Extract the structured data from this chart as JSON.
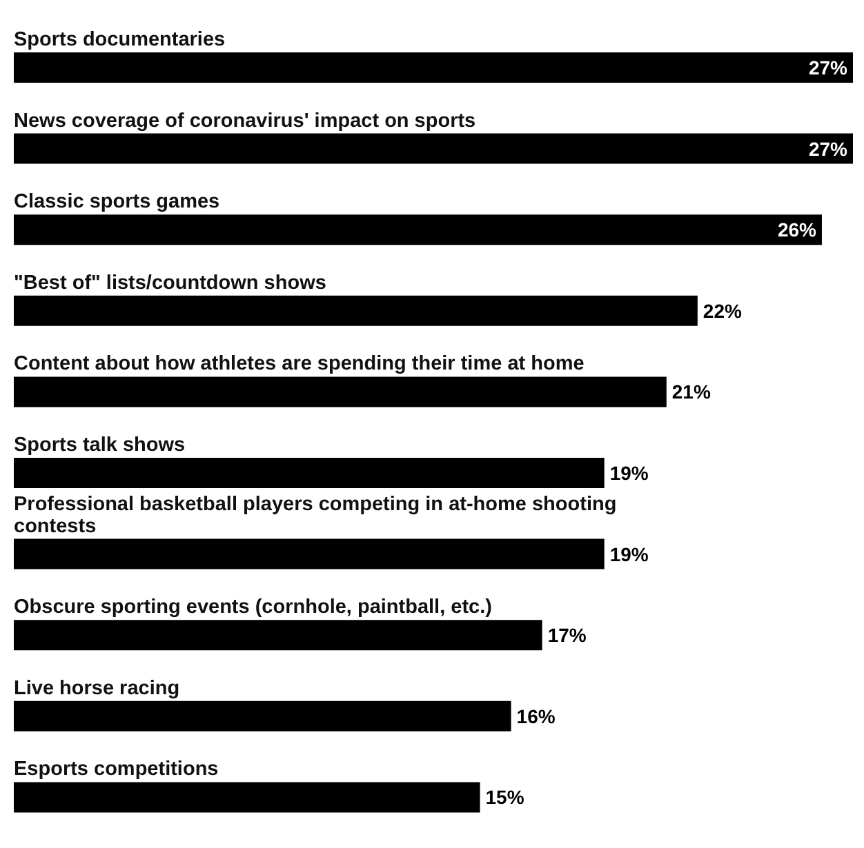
{
  "chart_data": {
    "type": "bar",
    "orientation": "horizontal",
    "categories": [
      "Sports documentaries",
      "News coverage of coronavirus' impact on sports",
      "Classic sports games",
      "\"Best of\" lists/countdown shows",
      "Content about how athletes are spending their time at home",
      "Sports talk shows",
      "Professional basketball players competing in at-home shooting contests",
      "Obscure sporting events (cornhole, paintball, etc.)",
      "Live horse racing",
      "Esports competitions"
    ],
    "values": [
      27,
      27,
      26,
      22,
      21,
      19,
      19,
      17,
      16,
      15
    ],
    "value_labels": [
      "27%",
      "27%",
      "26%",
      "22%",
      "21%",
      "19%",
      "19%",
      "17%",
      "16%",
      "15%"
    ],
    "color": "#000000"
  }
}
